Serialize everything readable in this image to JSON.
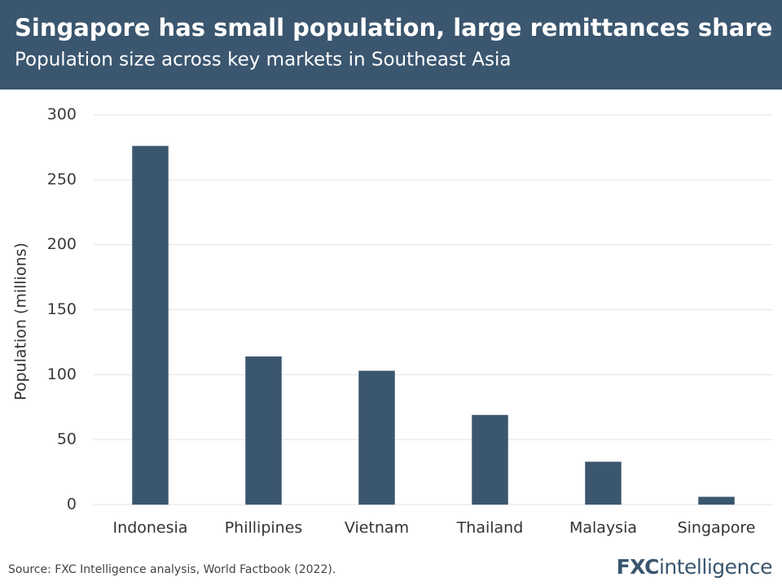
{
  "chart_data": {
    "type": "bar",
    "title": "Singapore has small population, large remittances share",
    "subtitle": "Population size across key markets in Southeast Asia",
    "y_label": "Population (millions)",
    "categories": [
      "Indonesia",
      "Phillipines",
      "Vietnam",
      "Thailand",
      "Malaysia",
      "Singapore"
    ],
    "values": [
      276,
      114,
      103,
      69,
      33,
      6
    ],
    "color": "#3b566f",
    "ylim": [
      0,
      300
    ],
    "yticks": [
      0,
      50,
      100,
      150,
      200,
      250,
      300
    ],
    "grid": true,
    "source": "Source: FXC Intelligence analysis, World Factbook (2022).",
    "logo_bold": "FXC",
    "logo_light": "intelligence"
  }
}
